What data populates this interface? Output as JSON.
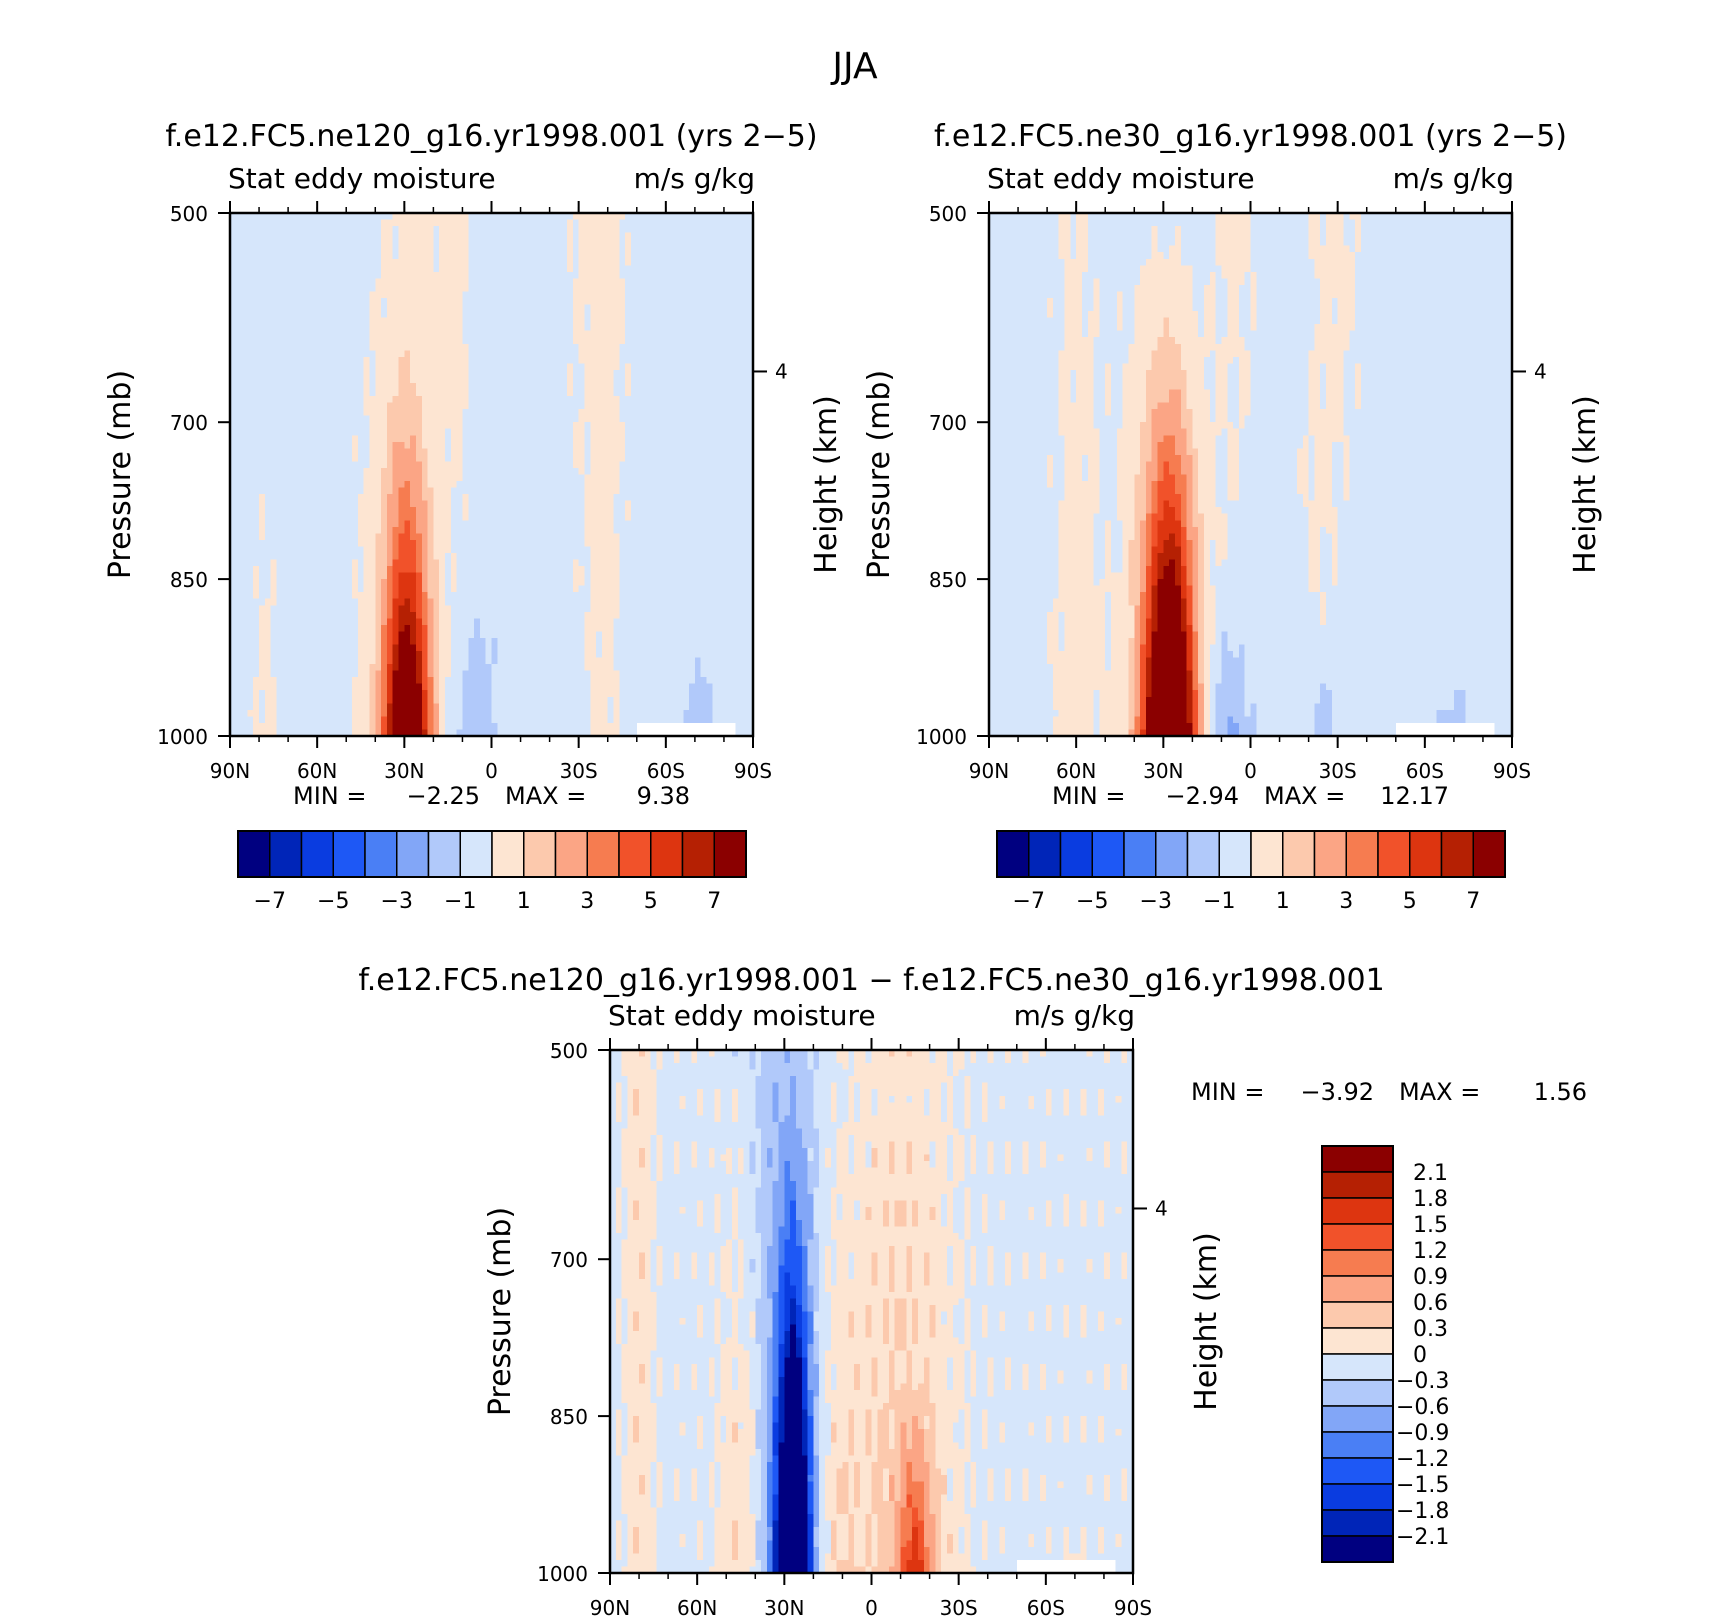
{
  "figure": {
    "title": "JJA"
  },
  "panels": [
    {
      "id": "ne120",
      "title": "f.e12.FC5.ne120_g16.yr1998.001 (yrs 2-5)",
      "variable": "Stat eddy moisture",
      "units": "m/s g/kg",
      "ylabel": "Pressure (mb)",
      "ylabel_right": "Height (km)",
      "min_label": "MIN =",
      "min_value": "-2.25",
      "max_label": "MAX =",
      "max_value": "9.38"
    },
    {
      "id": "ne30",
      "title": "f.e12.FC5.ne30_g16.yr1998.001 (yrs 2-5)",
      "variable": "Stat eddy moisture",
      "units": "m/s g/kg",
      "ylabel": "Pressure (mb)",
      "ylabel_right": "Height (km)",
      "min_label": "MIN =",
      "min_value": "-2.94",
      "max_label": "MAX =",
      "max_value": "12.17"
    },
    {
      "id": "diff",
      "title": "f.e12.FC5.ne120_g16.yr1998.001 - f.e12.FC5.ne30_g16.yr1998.001",
      "variable": "Stat eddy moisture",
      "units": "m/s g/kg",
      "ylabel": "Pressure (mb)",
      "ylabel_right": "Height (km)",
      "min_label": "MIN =",
      "min_value": "-3.92",
      "max_label": "MAX =",
      "max_value": "1.56"
    }
  ],
  "chart_data": [
    {
      "type": "heatmap",
      "panel": "ne120",
      "x_categories": [
        "90N",
        "60N",
        "30N",
        "0",
        "30S",
        "60S",
        "90S"
      ],
      "x_range": [
        90,
        -90
      ],
      "y_ticks": [
        500,
        700,
        850,
        1000
      ],
      "y_range": [
        500,
        1000
      ],
      "y_right_ticks": [
        "4"
      ],
      "features": [
        {
          "name": "subtropical max",
          "lat": 30,
          "p": 1000,
          "value": 9.38
        },
        {
          "name": "min",
          "lat": 5,
          "p": 950,
          "value": -2.25
        }
      ],
      "colorbar": {
        "labels": [
          "-7",
          "-5",
          "-3",
          "-1",
          "1",
          "3",
          "5",
          "7"
        ],
        "levels": [
          -7,
          -6,
          -5,
          -4,
          -3,
          -2,
          -1,
          0,
          1,
          2,
          3,
          4,
          5,
          6,
          7
        ]
      }
    },
    {
      "type": "heatmap",
      "panel": "ne30",
      "x_categories": [
        "90N",
        "60N",
        "30N",
        "0",
        "30S",
        "60S",
        "90S"
      ],
      "x_range": [
        90,
        -90
      ],
      "y_ticks": [
        500,
        700,
        850,
        1000
      ],
      "y_range": [
        500,
        1000
      ],
      "y_right_ticks": [
        "4"
      ],
      "features": [
        {
          "name": "subtropical max",
          "lat": 30,
          "p": 1000,
          "value": 12.17
        },
        {
          "name": "min",
          "lat": 10,
          "p": 950,
          "value": -2.94
        }
      ],
      "colorbar": {
        "labels": [
          "-7",
          "-5",
          "-3",
          "-1",
          "1",
          "3",
          "5",
          "7"
        ],
        "levels": [
          -7,
          -6,
          -5,
          -4,
          -3,
          -2,
          -1,
          0,
          1,
          2,
          3,
          4,
          5,
          6,
          7
        ]
      }
    },
    {
      "type": "heatmap",
      "panel": "diff",
      "x_categories": [
        "90N",
        "60N",
        "30N",
        "0",
        "30S",
        "60S",
        "90S"
      ],
      "x_range": [
        90,
        -90
      ],
      "y_ticks": [
        500,
        700,
        850,
        1000
      ],
      "y_range": [
        500,
        1000
      ],
      "y_right_ticks": [
        "4"
      ],
      "features": [
        {
          "name": "min",
          "lat": 27,
          "p": 900,
          "value": -3.92
        },
        {
          "name": "max",
          "lat": -15,
          "p": 950,
          "value": 1.56
        }
      ],
      "colorbar": {
        "labels": [
          "2.1",
          "1.8",
          "1.5",
          "1.2",
          "0.9",
          "0.6",
          "0.3",
          "0",
          "-0.3",
          "-0.6",
          "-0.9",
          "-1.2",
          "-1.5",
          "-1.8",
          "-2.1"
        ],
        "levels": [
          2.1,
          1.8,
          1.5,
          1.2,
          0.9,
          0.6,
          0.3,
          0,
          -0.3,
          -0.6,
          -0.9,
          -1.2,
          -1.5,
          -1.8,
          -2.1
        ]
      }
    }
  ],
  "colors": {
    "palette": [
      "#000080",
      "#0025b8",
      "#0a3ce0",
      "#1e58f5",
      "#4a7ff5",
      "#82a6f7",
      "#b1c9fa",
      "#d6e6fb",
      "#fde5d2",
      "#fcc9ad",
      "#fba585",
      "#f67c50",
      "#f1522a",
      "#dd3510",
      "#b52003",
      "#8b0000"
    ]
  }
}
